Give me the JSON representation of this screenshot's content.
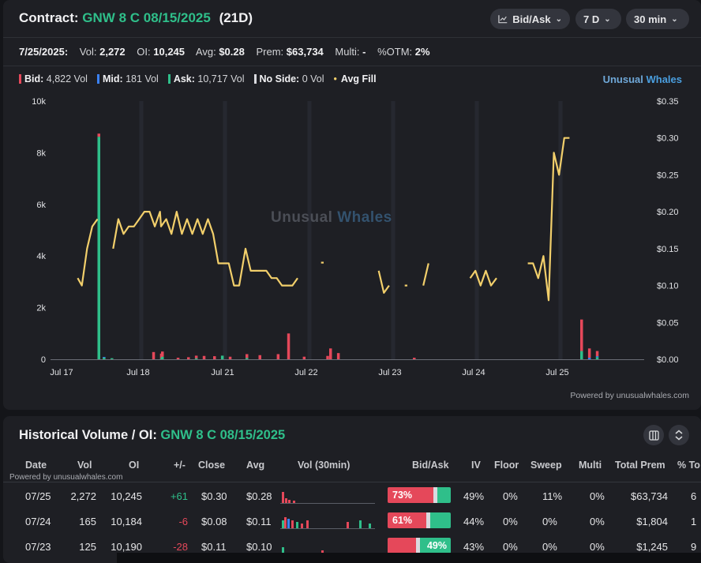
{
  "header": {
    "contract_label": "Contract:",
    "contract_name": "GNW 8 C 08/15/2025",
    "dte": "(21D)",
    "controls": [
      {
        "icon": "line-chart-icon",
        "label": "Bid/Ask"
      },
      {
        "icon": "",
        "label": "7 D"
      },
      {
        "icon": "",
        "label": "30 min"
      }
    ]
  },
  "stats": {
    "date": "7/25/2025:",
    "vol_label": "Vol:",
    "vol": "2,272",
    "oi_label": "OI:",
    "oi": "10,245",
    "avg_label": "Avg:",
    "avg": "$0.28",
    "prem_label": "Prem:",
    "prem": "$63,734",
    "multi_label": "Multi:",
    "multi": "-",
    "otm_label": "%OTM:",
    "otm": "2%"
  },
  "legend": {
    "bid_label": "Bid:",
    "bid_value": "4,822 Vol",
    "mid_label": "Mid:",
    "mid_value": "181 Vol",
    "ask_label": "Ask:",
    "ask_value": "10,717 Vol",
    "noside_label": "No Side:",
    "noside_value": "0 Vol",
    "avgfill_label": "Avg Fill"
  },
  "brand": {
    "part1": "Unusual",
    "part2": "Whales"
  },
  "watermark": {
    "part1": "Unusual",
    "part2": "Whales"
  },
  "powered_by": "Powered by unusualwhales.com",
  "colors": {
    "bid": "#e5485a",
    "mid": "#3b82f6",
    "ask": "#2fbf8a",
    "noside": "#d9dadf",
    "avg_fill": "#f2cf6b"
  },
  "chart_data": {
    "type": "bar+line",
    "x_labels": [
      "Jul 17",
      "Jul 18",
      "Jul 21",
      "Jul 22",
      "Jul 23",
      "Jul 24",
      "Jul 25"
    ],
    "left_axis": {
      "ticks": [
        "0",
        "2k",
        "4k",
        "6k",
        "8k",
        "10k"
      ],
      "ylim": [
        0,
        10000
      ]
    },
    "right_axis": {
      "ticks": [
        "$0.00",
        "$0.05",
        "$0.10",
        "$0.15",
        "$0.20",
        "$0.25",
        "$0.30",
        "$0.35"
      ],
      "ylim": [
        0,
        0.35
      ]
    },
    "bars": [
      {
        "day": 0,
        "slot": 2.5,
        "bid": 120,
        "ask": 8620
      },
      {
        "day": 0,
        "slot": 3.5,
        "ask": 60,
        "mid": 30
      },
      {
        "day": 0,
        "slot": 5,
        "ask": 40
      },
      {
        "day": 0,
        "slot": 13,
        "bid": 280
      },
      {
        "day": 0,
        "slot": 14.5,
        "bid": 180,
        "ask": 40
      },
      {
        "day": 1,
        "slot": 0,
        "bid": 200,
        "ask": 100
      },
      {
        "day": 1,
        "slot": 3,
        "bid": 60
      },
      {
        "day": 1,
        "slot": 5,
        "bid": 80
      },
      {
        "day": 1,
        "slot": 6.5,
        "bid": 100,
        "ask": 40
      },
      {
        "day": 1,
        "slot": 8,
        "bid": 130
      },
      {
        "day": 1,
        "slot": 10,
        "bid": 120
      },
      {
        "day": 1,
        "slot": 11.5,
        "ask": 140
      },
      {
        "day": 1,
        "slot": 13,
        "bid": 100
      },
      {
        "day": 2,
        "slot": 0,
        "bid": 150,
        "ask": 50
      },
      {
        "day": 2,
        "slot": 2.5,
        "bid": 160
      },
      {
        "day": 2,
        "slot": 6,
        "bid": 200
      },
      {
        "day": 2,
        "slot": 8,
        "bid": 1000
      },
      {
        "day": 2,
        "slot": 11,
        "bid": 100
      },
      {
        "day": 2,
        "slot": 15.5,
        "bid": 130
      },
      {
        "day": 3,
        "slot": 0,
        "bid": 420
      },
      {
        "day": 3,
        "slot": 1.5,
        "bid": 240
      },
      {
        "day": 4,
        "slot": 0,
        "bid": 60
      },
      {
        "day": 6,
        "slot": 0,
        "bid": 1220,
        "ask": 320
      },
      {
        "day": 6,
        "slot": 1.5,
        "bid": 360,
        "mid": 60
      },
      {
        "day": 6,
        "slot": 3,
        "bid": 200,
        "ask": 80,
        "mid": 40
      }
    ],
    "avg_fill_segments": [
      [
        [
          0,
          -1.3,
          0.11
        ],
        [
          0,
          -0.5,
          0.1
        ],
        [
          0,
          0.5,
          0.15
        ],
        [
          0,
          1.5,
          0.18
        ],
        [
          0,
          2.5,
          0.19
        ]
      ],
      [
        [
          0,
          5.5,
          0.15
        ],
        [
          0,
          6.5,
          0.19
        ],
        [
          0,
          7.5,
          0.17
        ],
        [
          0,
          8.5,
          0.18
        ],
        [
          0,
          9.5,
          0.18
        ],
        [
          0,
          10.5,
          0.19
        ],
        [
          0,
          11.5,
          0.2
        ],
        [
          0,
          12.5,
          0.2
        ],
        [
          0,
          13.5,
          0.18
        ],
        [
          0,
          14.5,
          0.2
        ],
        [
          1,
          0,
          0.18
        ],
        [
          1,
          1,
          0.19
        ],
        [
          1,
          2,
          0.17
        ],
        [
          1,
          3,
          0.2
        ],
        [
          1,
          4,
          0.17
        ],
        [
          1,
          5,
          0.19
        ],
        [
          1,
          6,
          0.17
        ],
        [
          1,
          7,
          0.19
        ],
        [
          1,
          8,
          0.17
        ],
        [
          1,
          9,
          0.19
        ],
        [
          1,
          10,
          0.17
        ],
        [
          1,
          11,
          0.13
        ],
        [
          1,
          12,
          0.13
        ],
        [
          1,
          13,
          0.13
        ],
        [
          1,
          14,
          0.1
        ],
        [
          1,
          15,
          0.1
        ],
        [
          2,
          0,
          0.15
        ],
        [
          2,
          1,
          0.12
        ],
        [
          2,
          2,
          0.12
        ],
        [
          2,
          3,
          0.12
        ],
        [
          2,
          4,
          0.12
        ],
        [
          2,
          5,
          0.11
        ],
        [
          2,
          6,
          0.11
        ],
        [
          2,
          7,
          0.1
        ],
        [
          2,
          8,
          0.1
        ],
        [
          2,
          9,
          0.1
        ],
        [
          2,
          10,
          0.11
        ]
      ],
      [
        [
          2,
          14.5,
          0.131
        ],
        [
          2,
          15,
          0.131
        ]
      ],
      [
        [
          3,
          9.5,
          0.12
        ],
        [
          3,
          10.5,
          0.09
        ],
        [
          3,
          11.5,
          0.1
        ]
      ],
      [
        [
          3,
          14.5,
          0.1
        ],
        [
          3,
          15,
          0.1
        ]
      ],
      [
        [
          4,
          2,
          0.1
        ],
        [
          4,
          3,
          0.13
        ]
      ],
      [
        [
          4,
          11,
          0.11
        ],
        [
          4,
          12,
          0.12
        ],
        [
          4,
          13,
          0.1
        ],
        [
          4,
          14,
          0.12
        ],
        [
          4,
          15,
          0.1
        ],
        [
          5,
          0,
          0.11
        ]
      ],
      [
        [
          5,
          6,
          0.13
        ],
        [
          5,
          7,
          0.13
        ],
        [
          5,
          8,
          0.11
        ],
        [
          5,
          9,
          0.14
        ],
        [
          5,
          10,
          0.08
        ],
        [
          5,
          11,
          0.28
        ],
        [
          5,
          12,
          0.25
        ],
        [
          5,
          13,
          0.3
        ],
        [
          5,
          14,
          0.3
        ]
      ]
    ]
  },
  "history": {
    "title": "Historical Volume / OI:",
    "contract": "GNW 8 C 08/15/2025",
    "powered_by": "Powered by unusualwhales.com",
    "columns": [
      "Date",
      "Vol",
      "OI",
      "+/-",
      "Close",
      "Avg",
      "Vol (30min)",
      "Bid/Ask",
      "IV",
      "Floor",
      "Sweep",
      "Multi",
      "Total Prem",
      "% To"
    ],
    "rows": [
      {
        "date": "07/25",
        "vol": "2,272",
        "oi": "10,245",
        "chg": "+61",
        "chg_sign": "pos",
        "close": "$0.30",
        "avg": "$0.28",
        "bid_pct": 73,
        "bid_label": "73%",
        "ask_label": "",
        "iv": "49%",
        "floor": "0%",
        "sweep": "11%",
        "multi": "0%",
        "total_prem": "$63,734",
        "pct_to": "6"
      },
      {
        "date": "07/24",
        "vol": "165",
        "oi": "10,184",
        "chg": "-6",
        "chg_sign": "neg",
        "close": "$0.08",
        "avg": "$0.11",
        "bid_pct": 61,
        "bid_label": "61%",
        "ask_label": "",
        "iv": "44%",
        "floor": "0%",
        "sweep": "0%",
        "multi": "0%",
        "total_prem": "$1,804",
        "pct_to": "1"
      },
      {
        "date": "07/23",
        "vol": "125",
        "oi": "10,190",
        "chg": "-28",
        "chg_sign": "neg",
        "close": "$0.11",
        "avg": "$0.10",
        "bid_pct": 45,
        "bid_label": "",
        "ask_label": "49%",
        "iv": "43%",
        "floor": "0%",
        "sweep": "0%",
        "multi": "0%",
        "total_prem": "$1,245",
        "pct_to": "9"
      }
    ]
  }
}
